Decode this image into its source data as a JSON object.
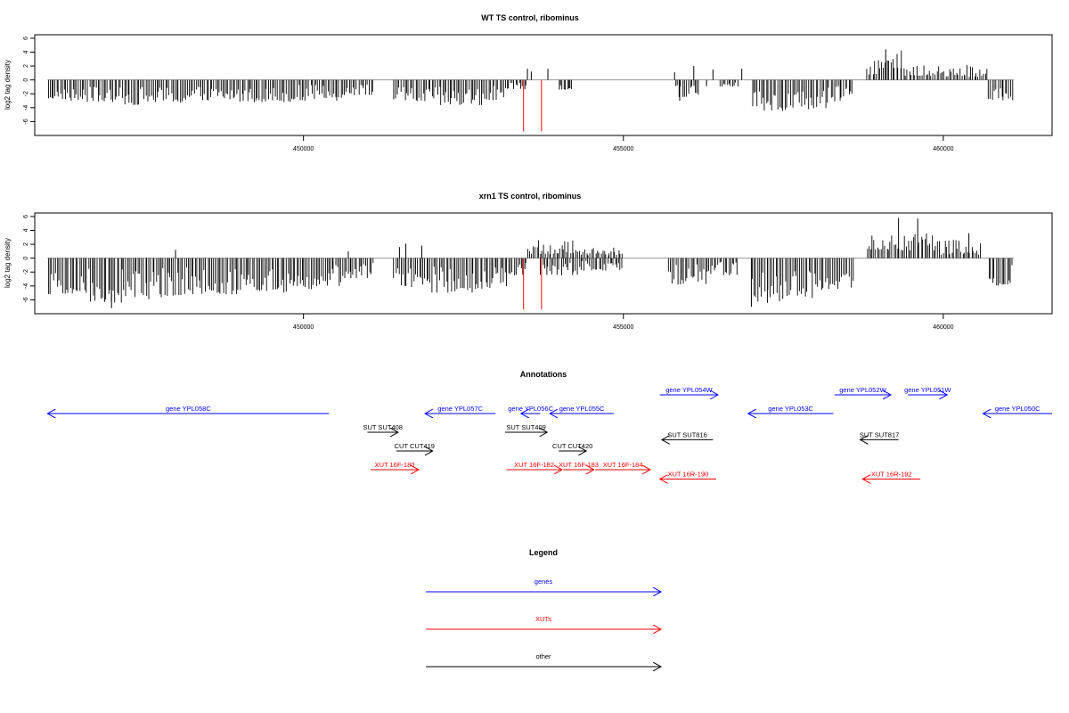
{
  "chart_data": [
    {
      "type": "bar",
      "title": "WT TS control, ribominus",
      "xlabel": "",
      "ylabel": "log2 tag density",
      "xlim": [
        445800,
        461700
      ],
      "ylim": [
        -8,
        6.5
      ],
      "yticks": [
        6,
        4,
        2,
        0,
        -2,
        -4,
        -6
      ],
      "xticks": [
        450000,
        455000,
        460000
      ],
      "xtick_labels": [
        "450000",
        "455000",
        "460000"
      ],
      "baseline_color": "#9a9a9a",
      "bar_color": "#000000",
      "highlight_color": "#ff0000",
      "highlight_bars": [
        {
          "x": 453440,
          "y": -7.4
        },
        {
          "x": 453720,
          "y": -7.4
        }
      ],
      "segments": [
        {
          "from": 446000,
          "to": 446300,
          "lo": -2.8,
          "hi": -1.2
        },
        {
          "from": 446300,
          "to": 446900,
          "lo": -3.2,
          "hi": -1.0
        },
        {
          "from": 446900,
          "to": 447500,
          "lo": -3.6,
          "hi": -1.0
        },
        {
          "from": 447500,
          "to": 448200,
          "lo": -3.4,
          "hi": -0.9
        },
        {
          "from": 448200,
          "to": 449000,
          "lo": -3.0,
          "hi": -0.8
        },
        {
          "from": 449000,
          "to": 449800,
          "lo": -3.2,
          "hi": -0.9
        },
        {
          "from": 449800,
          "to": 450600,
          "lo": -3.0,
          "hi": -0.7
        },
        {
          "from": 450600,
          "to": 451100,
          "lo": -2.2,
          "hi": -0.6
        },
        {
          "from": 451400,
          "to": 452000,
          "lo": -3.3,
          "hi": -0.9
        },
        {
          "from": 452000,
          "to": 452800,
          "lo": -3.8,
          "hi": -1.0
        },
        {
          "from": 452800,
          "to": 453200,
          "lo": -3.0,
          "hi": -0.8
        },
        {
          "from": 453200,
          "to": 453500,
          "lo": -1.5,
          "hi": -0.4
        },
        {
          "from": 454000,
          "to": 454200,
          "lo": -1.5,
          "hi": -0.5
        },
        {
          "from": 455800,
          "to": 456200,
          "lo": -2.5,
          "hi": -0.5
        },
        {
          "from": 456500,
          "to": 456800,
          "lo": -1.0,
          "hi": -0.3
        },
        {
          "from": 457000,
          "to": 457600,
          "lo": -4.5,
          "hi": -1.5
        },
        {
          "from": 457600,
          "to": 458200,
          "lo": -4.2,
          "hi": -1.3
        },
        {
          "from": 458200,
          "to": 458600,
          "lo": -3.2,
          "hi": -0.9
        },
        {
          "from": 458800,
          "to": 459400,
          "lo": 0.8,
          "hi": 4.3
        },
        {
          "from": 459400,
          "to": 460000,
          "lo": 0.5,
          "hi": 2.5
        },
        {
          "from": 460000,
          "to": 460700,
          "lo": 0.4,
          "hi": 2.2
        },
        {
          "from": 460700,
          "to": 461100,
          "lo": -3.0,
          "hi": -1.0
        }
      ],
      "manual_bars": [
        {
          "x": 453500,
          "y": 1.6
        },
        {
          "x": 453560,
          "y": 1.2
        },
        {
          "x": 453820,
          "y": 1.6
        },
        {
          "x": 454000,
          "y": -1.4
        },
        {
          "x": 454150,
          "y": -1.2
        },
        {
          "x": 455800,
          "y": 1.1
        },
        {
          "x": 455880,
          "y": -3.0
        },
        {
          "x": 456100,
          "y": 2.0
        },
        {
          "x": 456300,
          "y": -0.9
        },
        {
          "x": 456400,
          "y": 1.5
        },
        {
          "x": 456850,
          "y": 1.6
        },
        {
          "x": 459100,
          "y": 4.4
        }
      ]
    },
    {
      "type": "bar",
      "title": "xrn1 TS control, ribominus",
      "xlabel": "",
      "ylabel": "log2 tag density",
      "xlim": [
        445800,
        461700
      ],
      "ylim": [
        -8,
        6.5
      ],
      "yticks": [
        6,
        4,
        2,
        0,
        -2,
        -4,
        -6
      ],
      "xticks": [
        450000,
        455000,
        460000
      ],
      "xtick_labels": [
        "450000",
        "455000",
        "460000"
      ],
      "baseline_color": "#9a9a9a",
      "bar_color": "#000000",
      "highlight_color": "#ff0000",
      "highlight_bars": [
        {
          "x": 453440,
          "y": -7.4
        },
        {
          "x": 453720,
          "y": -7.4
        }
      ],
      "segments": [
        {
          "from": 446000,
          "to": 446600,
          "lo": -5.5,
          "hi": -1.5
        },
        {
          "from": 446600,
          "to": 447300,
          "lo": -6.5,
          "hi": -1.5
        },
        {
          "from": 447300,
          "to": 448100,
          "lo": -6.0,
          "hi": -1.4
        },
        {
          "from": 448100,
          "to": 449000,
          "lo": -5.2,
          "hi": -1.2
        },
        {
          "from": 449000,
          "to": 449800,
          "lo": -5.0,
          "hi": -1.2
        },
        {
          "from": 449800,
          "to": 450600,
          "lo": -4.6,
          "hi": -1.0
        },
        {
          "from": 450600,
          "to": 451100,
          "lo": -3.0,
          "hi": -0.6
        },
        {
          "from": 451400,
          "to": 452000,
          "lo": -4.2,
          "hi": -1.0
        },
        {
          "from": 452000,
          "to": 452700,
          "lo": -5.0,
          "hi": -1.2
        },
        {
          "from": 452700,
          "to": 453200,
          "lo": -4.4,
          "hi": -1.0
        },
        {
          "from": 453200,
          "to": 453500,
          "lo": -2.5,
          "hi": -0.6
        },
        {
          "from": 453700,
          "to": 454300,
          "lo": -2.5,
          "hi": -0.5
        },
        {
          "from": 454300,
          "to": 455000,
          "lo": -1.8,
          "hi": -0.4
        },
        {
          "from": 455700,
          "to": 456300,
          "lo": -4.0,
          "hi": -0.8
        },
        {
          "from": 456300,
          "to": 456800,
          "lo": -2.5,
          "hi": -0.5
        },
        {
          "from": 457000,
          "to": 457600,
          "lo": -6.5,
          "hi": -2.0
        },
        {
          "from": 457600,
          "to": 458200,
          "lo": -5.8,
          "hi": -1.8
        },
        {
          "from": 458200,
          "to": 458600,
          "lo": -4.5,
          "hi": -1.2
        },
        {
          "from": 458800,
          "to": 459300,
          "lo": 1.2,
          "hi": 4.0
        },
        {
          "from": 459300,
          "to": 459900,
          "lo": 1.0,
          "hi": 3.8
        },
        {
          "from": 459900,
          "to": 460600,
          "lo": 0.5,
          "hi": 3.0
        },
        {
          "from": 460700,
          "to": 461100,
          "lo": -4.0,
          "hi": -1.0
        },
        {
          "from": 453500,
          "to": 454300,
          "lo": 0.6,
          "hi": 2.6
        },
        {
          "from": 454300,
          "to": 455000,
          "lo": 0.4,
          "hi": 1.8
        }
      ],
      "manual_bars": [
        {
          "x": 451500,
          "y": 1.6
        },
        {
          "x": 451600,
          "y": 2.1
        },
        {
          "x": 451850,
          "y": 1.8
        },
        {
          "x": 450700,
          "y": 1.0
        },
        {
          "x": 448000,
          "y": 1.2
        },
        {
          "x": 459300,
          "y": 5.8
        },
        {
          "x": 459600,
          "y": 5.7
        },
        {
          "x": 460400,
          "y": 3.6
        },
        {
          "x": 457000,
          "y": -7.0
        },
        {
          "x": 447000,
          "y": -7.2
        }
      ]
    }
  ],
  "annotations": {
    "title": "Annotations",
    "xlim": [
      445800,
      461700
    ],
    "items": [
      {
        "label": "gene YPL058C",
        "start": 446000,
        "end": 450400,
        "dir": "left",
        "row": 0,
        "color": "#0000ff"
      },
      {
        "label": "gene YPL057C",
        "start": 451900,
        "end": 453000,
        "dir": "left",
        "row": 0,
        "color": "#0000ff"
      },
      {
        "label": "gene YPL056C",
        "start": 453400,
        "end": 453700,
        "dir": "left",
        "row": 0,
        "color": "#0000ff"
      },
      {
        "label": "gene YPL055C",
        "start": 453850,
        "end": 454850,
        "dir": "left",
        "row": 0,
        "color": "#0000ff"
      },
      {
        "label": "gene YPL054W",
        "start": 455570,
        "end": 456480,
        "dir": "right",
        "row": -1,
        "color": "#0000ff"
      },
      {
        "label": "gene YPL053C",
        "start": 456950,
        "end": 458280,
        "dir": "left",
        "row": 0,
        "color": "#0000ff"
      },
      {
        "label": "gene YPL052W",
        "start": 458300,
        "end": 459180,
        "dir": "right",
        "row": -1,
        "color": "#0000ff"
      },
      {
        "label": "gene YPL051W",
        "start": 459450,
        "end": 460060,
        "dir": "right",
        "row": -1,
        "color": "#0000ff"
      },
      {
        "label": "gene YPL050C",
        "start": 460620,
        "end": 461700,
        "dir": "left",
        "row": 0,
        "color": "#0000ff"
      },
      {
        "label": "SUT SUT408",
        "start": 451000,
        "end": 451480,
        "dir": "right",
        "row": 1,
        "color": "#000000"
      },
      {
        "label": "SUT SUT409",
        "start": 453150,
        "end": 453810,
        "dir": "right",
        "row": 1,
        "color": "#000000"
      },
      {
        "label": "SUT SUT816",
        "start": 455600,
        "end": 456400,
        "dir": "left",
        "row": 1.4,
        "color": "#000000"
      },
      {
        "label": "SUT SUT817",
        "start": 458700,
        "end": 459300,
        "dir": "left",
        "row": 1.4,
        "color": "#000000"
      },
      {
        "label": "CUT CUT419",
        "start": 451450,
        "end": 452020,
        "dir": "right",
        "row": 2,
        "color": "#000000"
      },
      {
        "label": "CUT CUT420",
        "start": 453990,
        "end": 454420,
        "dir": "right",
        "row": 2,
        "color": "#000000"
      },
      {
        "label": "XUT 16F-180",
        "start": 451050,
        "end": 451800,
        "dir": "right",
        "row": 3,
        "color": "#ff0000"
      },
      {
        "label": "XUT 16F-182",
        "start": 453170,
        "end": 454040,
        "dir": "right",
        "row": 3,
        "color": "#ff0000"
      },
      {
        "label": "XUT 16F-183",
        "start": 454060,
        "end": 454540,
        "dir": "right",
        "row": 3,
        "color": "#ff0000"
      },
      {
        "label": "XUT 16F-184",
        "start": 454560,
        "end": 455420,
        "dir": "right",
        "row": 3,
        "color": "#ff0000"
      },
      {
        "label": "XUT 16R-190",
        "start": 455570,
        "end": 456450,
        "dir": "left",
        "row": 3.5,
        "color": "#ff0000"
      },
      {
        "label": "XUT 16R-192",
        "start": 458740,
        "end": 459640,
        "dir": "left",
        "row": 3.5,
        "color": "#ff0000"
      }
    ]
  },
  "legend": {
    "title": "Legend",
    "entries": [
      {
        "label": "genes",
        "color": "#0000ff"
      },
      {
        "label": "XUTs",
        "color": "#ff0000"
      },
      {
        "label": "other",
        "color": "#000000"
      }
    ]
  }
}
